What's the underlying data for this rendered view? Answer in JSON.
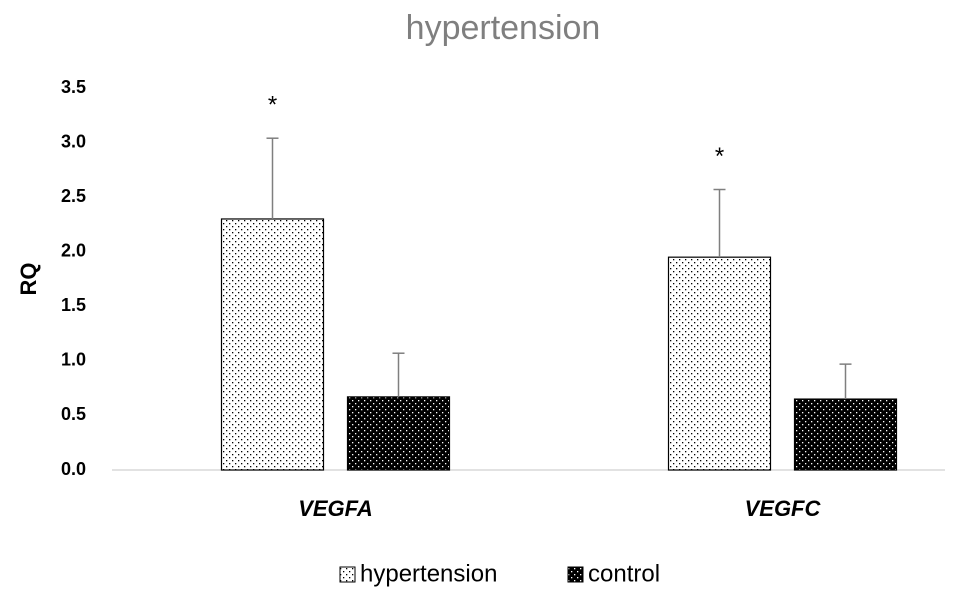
{
  "chart_data": {
    "type": "bar",
    "title": "hypertension",
    "y_label": "RQ",
    "categories": [
      "VEGFA",
      "VEGFC"
    ],
    "series": [
      {
        "name": "hypertension",
        "color": "#ffffff",
        "dot_color": "#000000",
        "values": [
          2.3,
          1.95
        ],
        "errors": [
          0.74,
          0.62
        ],
        "significance": [
          "*",
          "*"
        ]
      },
      {
        "name": "control",
        "color": "#000000",
        "dot_color": "#ffffff",
        "values": [
          0.67,
          0.65
        ],
        "errors": [
          0.4,
          0.32
        ]
      }
    ],
    "ylim": [
      0,
      3.5
    ],
    "yticks": [
      {
        "value": 0,
        "label": "0.0"
      },
      {
        "value": 0.5,
        "label": "0.5"
      },
      {
        "value": 1,
        "label": "1.0"
      },
      {
        "value": 1.5,
        "label": "1.5"
      },
      {
        "value": 2,
        "label": "2.0"
      },
      {
        "value": 2.5,
        "label": "2.5"
      },
      {
        "value": 3,
        "label": "3.0"
      },
      {
        "value": 3.5,
        "label": "3.5"
      }
    ],
    "grid": false,
    "legend": "bottom"
  }
}
